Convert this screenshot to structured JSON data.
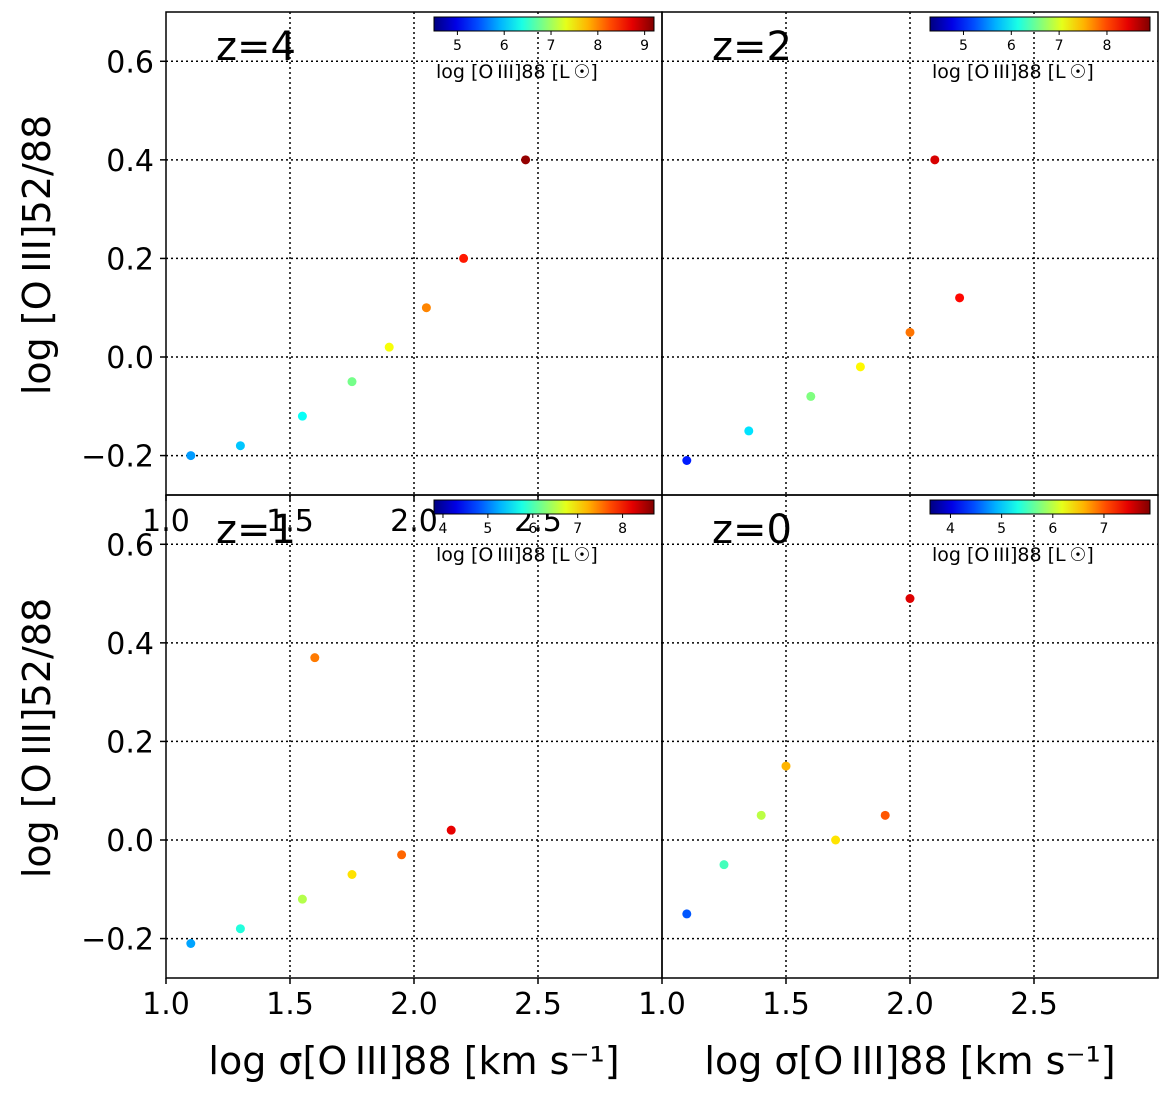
{
  "chart_data": [
    {
      "type": "scatter",
      "panel_label": "z=4",
      "xlim": [
        1.0,
        3.0
      ],
      "ylim": [
        -0.28,
        0.7
      ],
      "xticks": [
        "1.0",
        "1.5",
        "2.0",
        "2.5"
      ],
      "yticks": [
        "−0.2",
        "0.0",
        "0.2",
        "0.4",
        "0.6"
      ],
      "grid": true,
      "colormap": "jet",
      "colorbar": {
        "ticks": [
          "5",
          "6",
          "7",
          "8",
          "9"
        ],
        "range": [
          4.5,
          9.2
        ],
        "label": "log [O III]88 [L ☉]"
      },
      "points": [
        {
          "x": 1.1,
          "y": -0.2,
          "c": 5.8
        },
        {
          "x": 1.3,
          "y": -0.18,
          "c": 6.0
        },
        {
          "x": 1.55,
          "y": -0.12,
          "c": 6.3
        },
        {
          "x": 1.75,
          "y": -0.05,
          "c": 6.8
        },
        {
          "x": 1.9,
          "y": 0.02,
          "c": 7.4
        },
        {
          "x": 2.05,
          "y": 0.1,
          "c": 8.0
        },
        {
          "x": 2.2,
          "y": 0.2,
          "c": 8.5
        },
        {
          "x": 2.45,
          "y": 0.4,
          "c": 9.1
        }
      ]
    },
    {
      "type": "scatter",
      "panel_label": "z=2",
      "xlim": [
        1.0,
        3.0
      ],
      "ylim": [
        -0.28,
        0.7
      ],
      "xticks": [],
      "yticks": [],
      "grid": true,
      "colormap": "jet",
      "colorbar": {
        "ticks": [
          "5",
          "6",
          "7",
          "8"
        ],
        "range": [
          4.3,
          8.9
        ],
        "label": "log [O III]88 [L ☉]"
      },
      "points": [
        {
          "x": 1.1,
          "y": -0.21,
          "c": 5.0
        },
        {
          "x": 1.35,
          "y": -0.15,
          "c": 5.9
        },
        {
          "x": 1.6,
          "y": -0.08,
          "c": 6.6
        },
        {
          "x": 1.8,
          "y": -0.02,
          "c": 7.2
        },
        {
          "x": 2.0,
          "y": 0.05,
          "c": 7.8
        },
        {
          "x": 2.2,
          "y": 0.12,
          "c": 8.3
        },
        {
          "x": 2.1,
          "y": 0.4,
          "c": 8.5
        }
      ]
    },
    {
      "type": "scatter",
      "panel_label": "z=1",
      "xlim": [
        1.0,
        3.0
      ],
      "ylim": [
        -0.28,
        0.7
      ],
      "xticks": [
        "1.0",
        "1.5",
        "2.0",
        "2.5"
      ],
      "yticks": [
        "−0.2",
        "0.0",
        "0.2",
        "0.4",
        "0.6"
      ],
      "grid": true,
      "colormap": "jet",
      "colorbar": {
        "ticks": [
          "4",
          "5",
          "6",
          "7",
          "8"
        ],
        "range": [
          3.8,
          8.7
        ],
        "label": "log [O III]88 [L ☉]"
      },
      "points": [
        {
          "x": 1.1,
          "y": -0.21,
          "c": 5.2
        },
        {
          "x": 1.3,
          "y": -0.18,
          "c": 5.8
        },
        {
          "x": 1.55,
          "y": -0.12,
          "c": 6.5
        },
        {
          "x": 1.75,
          "y": -0.07,
          "c": 7.0
        },
        {
          "x": 1.95,
          "y": -0.03,
          "c": 7.6
        },
        {
          "x": 2.15,
          "y": 0.02,
          "c": 8.2
        },
        {
          "x": 1.6,
          "y": 0.37,
          "c": 7.5
        }
      ]
    },
    {
      "type": "scatter",
      "panel_label": "z=0",
      "xlim": [
        1.0,
        3.0
      ],
      "ylim": [
        -0.28,
        0.7
      ],
      "xticks": [
        "1.0",
        "1.5",
        "2.0",
        "2.5"
      ],
      "yticks": [],
      "grid": true,
      "colormap": "jet",
      "colorbar": {
        "ticks": [
          "4",
          "5",
          "6",
          "7"
        ],
        "range": [
          3.6,
          7.9
        ],
        "label": "log [O III]88 [L ☉]"
      },
      "points": [
        {
          "x": 1.1,
          "y": -0.15,
          "c": 4.5
        },
        {
          "x": 1.25,
          "y": -0.05,
          "c": 5.5
        },
        {
          "x": 1.4,
          "y": 0.05,
          "c": 6.0
        },
        {
          "x": 1.5,
          "y": 0.15,
          "c": 6.6
        },
        {
          "x": 1.7,
          "y": 0.0,
          "c": 6.4
        },
        {
          "x": 1.9,
          "y": 0.05,
          "c": 7.0
        },
        {
          "x": 2.0,
          "y": 0.49,
          "c": 7.5
        }
      ]
    }
  ],
  "axes": {
    "xlabel_left": "log σ[O III]88 [km s⁻¹]",
    "xlabel_right": "log σ[O III]88 [km s⁻¹]",
    "ylabel_top": "log [O III]52/88",
    "ylabel_bottom": "log [O III]52/88"
  }
}
